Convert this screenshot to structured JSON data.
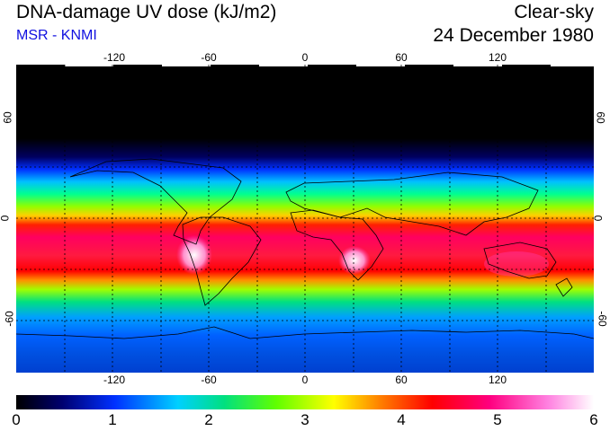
{
  "header": {
    "title": "DNA-damage UV dose (kJ/m2)",
    "subtitle": "MSR - KNMI",
    "condition": "Clear-sky",
    "date": "24 December 1980"
  },
  "map": {
    "projection": "equirectangular",
    "lon_range": [
      -180,
      180
    ],
    "lat_range": [
      -90,
      90
    ],
    "longitude_ticks": [
      "-120",
      "-60",
      "0",
      "60",
      "120"
    ],
    "latitude_ticks": [
      "60",
      "0",
      "-60"
    ],
    "gridlines": "dotted",
    "coastlines": true
  },
  "colorbar": {
    "labels": [
      "0",
      "1",
      "2",
      "3",
      "4",
      "5",
      "6"
    ],
    "min": 0,
    "max": 6,
    "colors": [
      "#000000",
      "#0000b0",
      "#0050ff",
      "#00e0ff",
      "#20e080",
      "#40ff00",
      "#c0ff00",
      "#ffff00",
      "#ff8000",
      "#ff0000",
      "#ff0060",
      "#ff40c0",
      "#ffb0f0",
      "#ffffff"
    ]
  }
}
